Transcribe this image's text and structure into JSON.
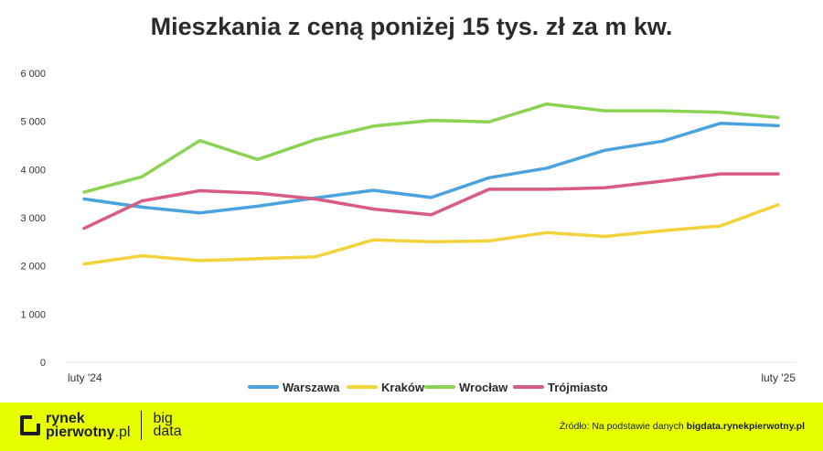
{
  "title": "Mieszkania z ceną poniżej 15 tys. zł za m kw.",
  "chart_data": {
    "type": "line",
    "title": "Mieszkania z ceną poniżej 15 tys. zł za m kw.",
    "x_start_label": "luty '24",
    "x_end_label": "luty '25",
    "x": [
      "luty '24",
      "",
      "",
      "",
      "",
      "",
      "",
      "",
      "",
      "",
      "",
      "",
      "luty '25"
    ],
    "ylim": [
      0,
      6000
    ],
    "yticks": [
      0,
      1000,
      2000,
      3000,
      4000,
      5000,
      6000
    ],
    "ytick_labels": [
      "0",
      "1 000",
      "2 000",
      "3 000",
      "4 000",
      "5 000",
      "6 000"
    ],
    "grid": false,
    "legend_position": "bottom",
    "series": [
      {
        "name": "Warszawa",
        "color": "#4aa3df",
        "values": [
          3390,
          3220,
          3100,
          3240,
          3410,
          3570,
          3420,
          3830,
          4030,
          4400,
          4590,
          4960,
          4910
        ]
      },
      {
        "name": "Kraków",
        "color": "#f2d33c",
        "values": [
          2040,
          2210,
          2110,
          2150,
          2190,
          2540,
          2500,
          2520,
          2690,
          2610,
          2730,
          2830,
          3270
        ]
      },
      {
        "name": "Wrocław",
        "color": "#8bd353",
        "values": [
          3530,
          3850,
          4600,
          4210,
          4620,
          4900,
          5020,
          4990,
          5360,
          5220,
          5220,
          5190,
          5080
        ]
      },
      {
        "name": "Trójmiasto",
        "color": "#d85c80",
        "values": [
          2780,
          3350,
          3560,
          3510,
          3390,
          3180,
          3060,
          3590,
          3590,
          3620,
          3760,
          3910,
          3910
        ]
      }
    ]
  },
  "footer": {
    "logo_bold": "rynek",
    "logo_line2": "pierwotny",
    "logo_suffix": ".pl",
    "bigdata_line1": "big",
    "bigdata_line2": "data",
    "source_prefix": "Źródło: Na podstawie danych ",
    "source_link": "bigdata.rynekpierwotny.pl"
  },
  "colors": {
    "footer_bg": "#e8ff00",
    "text": "#2b2b2b"
  }
}
